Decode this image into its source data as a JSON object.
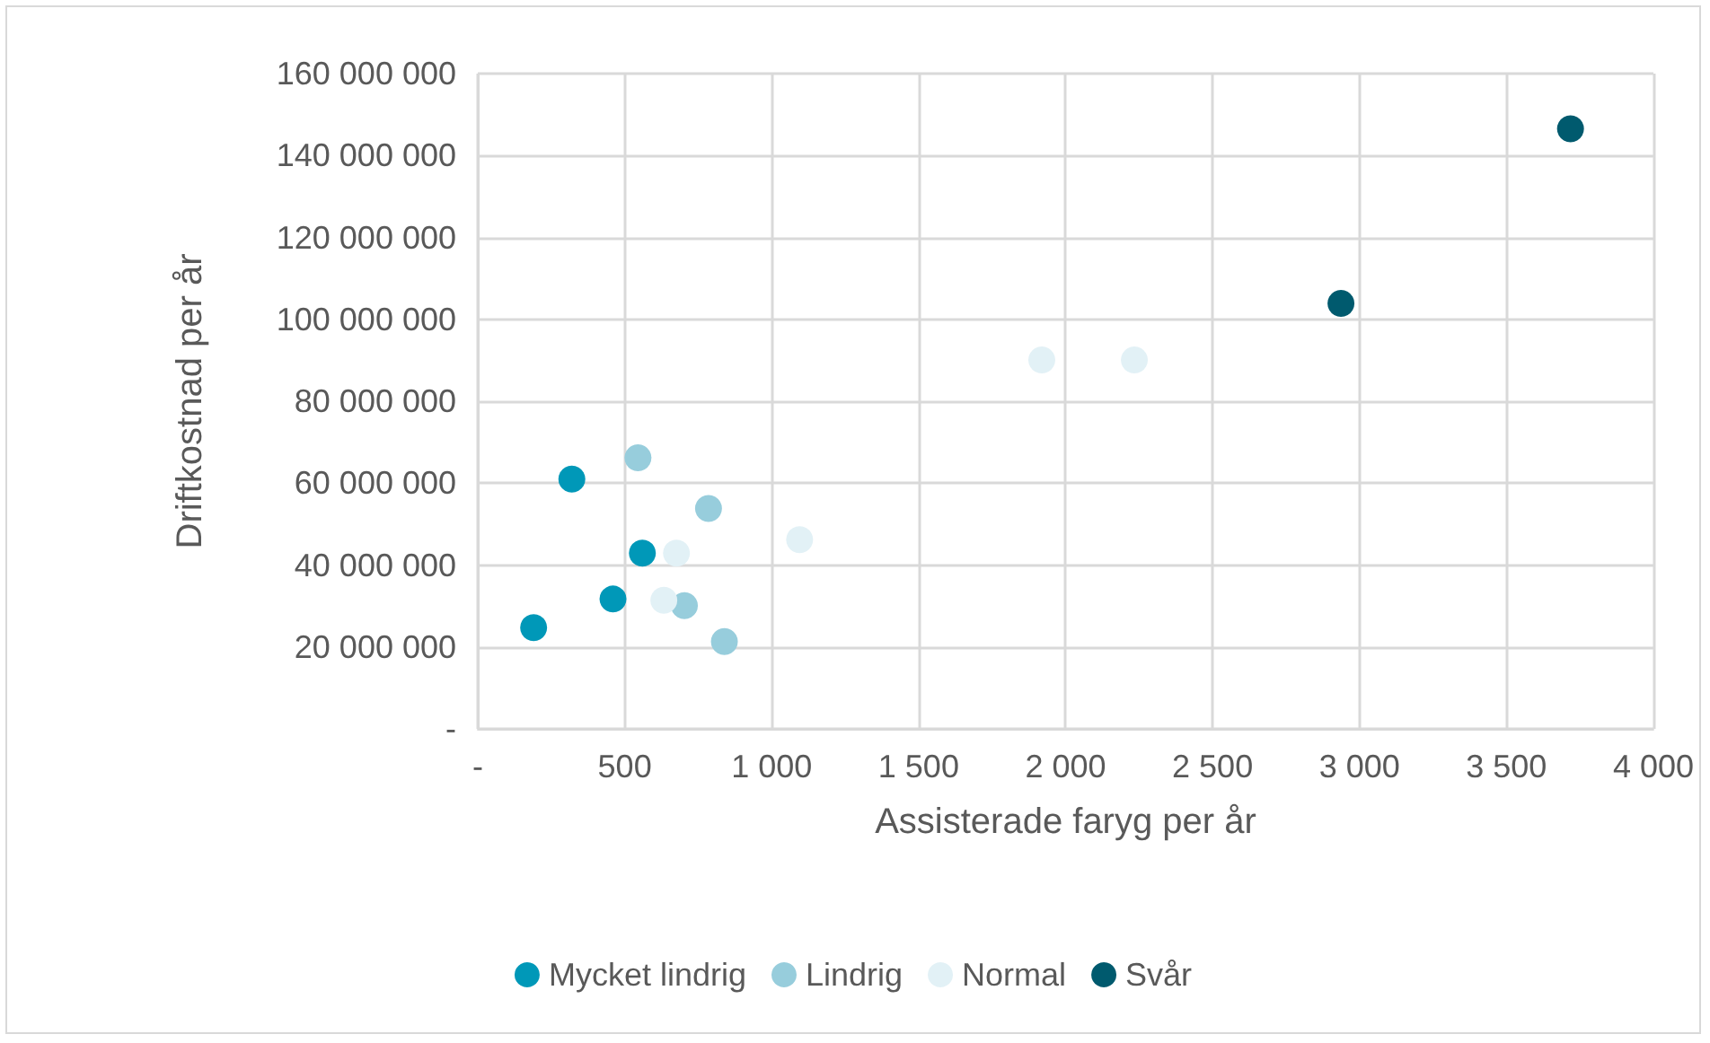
{
  "chart_data": {
    "type": "scatter",
    "xlabel": "Assisterade faryg per år",
    "ylabel": "Driftkostnad per år",
    "xlim": [
      0,
      4000
    ],
    "xticks": [
      {
        "value": 0,
        "label": "-"
      },
      {
        "value": 500,
        "label": "500"
      },
      {
        "value": 1000,
        "label": "1 000"
      },
      {
        "value": 1500,
        "label": "1 500"
      },
      {
        "value": 2000,
        "label": "2 000"
      },
      {
        "value": 2500,
        "label": "2 500"
      },
      {
        "value": 3000,
        "label": "3 000"
      },
      {
        "value": 3500,
        "label": "3 500"
      },
      {
        "value": 4000,
        "label": "4 000"
      }
    ],
    "ylim": [
      0,
      160000000
    ],
    "yticks": [
      {
        "value": 0,
        "label": "-"
      },
      {
        "value": 20000000,
        "label": "20 000 000"
      },
      {
        "value": 40000000,
        "label": "40 000 000"
      },
      {
        "value": 60000000,
        "label": "60 000 000"
      },
      {
        "value": 80000000,
        "label": "80 000 000"
      },
      {
        "value": 100000000,
        "label": "100 000 000"
      },
      {
        "value": 120000000,
        "label": "120 000 000"
      },
      {
        "value": 140000000,
        "label": "140 000 000"
      },
      {
        "value": 160000000,
        "label": "160 000 000"
      }
    ],
    "grid": true,
    "legend": "bottom",
    "marker": "circle",
    "series": [
      {
        "name": "Mycket lindrig",
        "color": "#0098b8",
        "x": [
          190,
          320,
          560,
          460
        ],
        "values": [
          24700000,
          61000000,
          42900000,
          31700000
        ]
      },
      {
        "name": "Lindrig",
        "color": "#97cddc",
        "x": [
          545,
          785,
          703,
          839
        ],
        "values": [
          66200000,
          53800000,
          30100000,
          21300000
        ]
      },
      {
        "name": "Normal",
        "color": "#e2f1f6",
        "x": [
          676,
          633,
          1095,
          1919,
          2234
        ],
        "values": [
          42900000,
          31400000,
          46200000,
          90100000,
          90100000
        ]
      },
      {
        "name": "Svår",
        "color": "#005a6e",
        "x": [
          2937,
          3718
        ],
        "values": [
          103900000,
          146500000
        ]
      }
    ]
  }
}
